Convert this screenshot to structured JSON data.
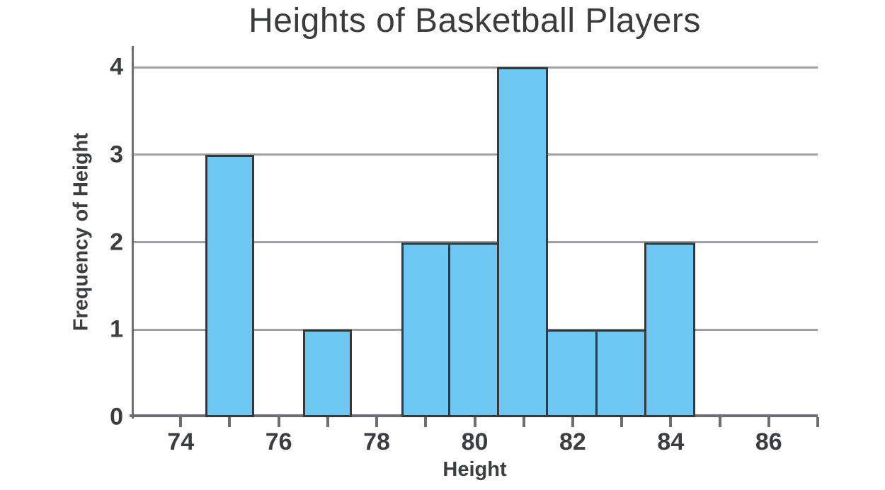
{
  "chart_data": {
    "type": "bar",
    "subtype": "histogram",
    "title": "Heights of Basketball Players",
    "xlabel": "Height",
    "ylabel": "Frequency of Height",
    "xlim": [
      73,
      87
    ],
    "ylim": [
      0,
      4.25
    ],
    "grid": true,
    "legend": false,
    "y_ticks": [
      0,
      1,
      2,
      3,
      4
    ],
    "x_ticks": [
      74,
      75,
      76,
      77,
      78,
      79,
      80,
      81,
      82,
      83,
      84,
      85,
      86,
      87
    ],
    "x_labeled_ticks": [
      74,
      76,
      78,
      80,
      82,
      84,
      86
    ],
    "bars": [
      {
        "range": [
          74.5,
          75.5
        ],
        "frequency": 3
      },
      {
        "range": [
          76.5,
          77.5
        ],
        "frequency": 1
      },
      {
        "range": [
          78.5,
          79.5
        ],
        "frequency": 2
      },
      {
        "range": [
          79.5,
          80.5
        ],
        "frequency": 2
      },
      {
        "range": [
          80.5,
          81.5
        ],
        "frequency": 4
      },
      {
        "range": [
          81.5,
          82.5
        ],
        "frequency": 1
      },
      {
        "range": [
          82.5,
          83.5
        ],
        "frequency": 1
      },
      {
        "range": [
          83.5,
          84.5
        ],
        "frequency": 2
      }
    ],
    "colors": {
      "bar_fill": "#6cc8f2",
      "bar_stroke": "#36383b",
      "gridline": "#9fa1a4",
      "axis": "#6d6e71",
      "text": "#3b3d40",
      "title_text": "#3a3b3d"
    }
  }
}
